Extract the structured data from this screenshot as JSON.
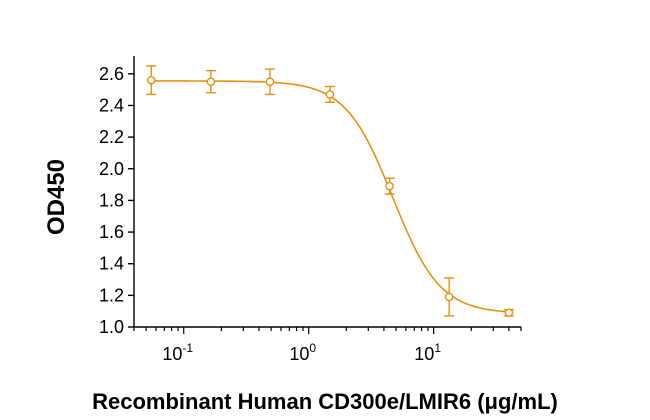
{
  "chart_data": {
    "type": "scatter",
    "xlabel": "Recombinant Human CD300e/LMIR6 (μg/mL)",
    "ylabel": "OD450",
    "xscale": "log",
    "xlim": [
      0.04,
      50
    ],
    "ylim": [
      1.0,
      2.7
    ],
    "yticks": [
      "1.0",
      "1.2",
      "1.4",
      "1.6",
      "1.8",
      "2.0",
      "2.2",
      "2.4",
      "2.6"
    ],
    "xticks": [
      {
        "base": "10",
        "exp": "-1"
      },
      {
        "base": "10",
        "exp": "0"
      },
      {
        "base": "10",
        "exp": "1"
      }
    ],
    "series": [
      {
        "points": [
          {
            "x": 0.055,
            "y": 2.56,
            "err": 0.09
          },
          {
            "x": 0.165,
            "y": 2.55,
            "err": 0.07
          },
          {
            "x": 0.49,
            "y": 2.55,
            "err": 0.08
          },
          {
            "x": 1.48,
            "y": 2.47,
            "err": 0.05
          },
          {
            "x": 4.44,
            "y": 1.89,
            "err": 0.05
          },
          {
            "x": 13.3,
            "y": 1.19,
            "err": 0.12
          },
          {
            "x": 40.0,
            "y": 1.09,
            "err": 0.02
          }
        ],
        "fit": {
          "top": 2.555,
          "bottom": 1.085,
          "ec50": 4.7,
          "hill": 2.3
        }
      }
    ],
    "color": "#E8900F",
    "grid": false,
    "legend": "none"
  }
}
